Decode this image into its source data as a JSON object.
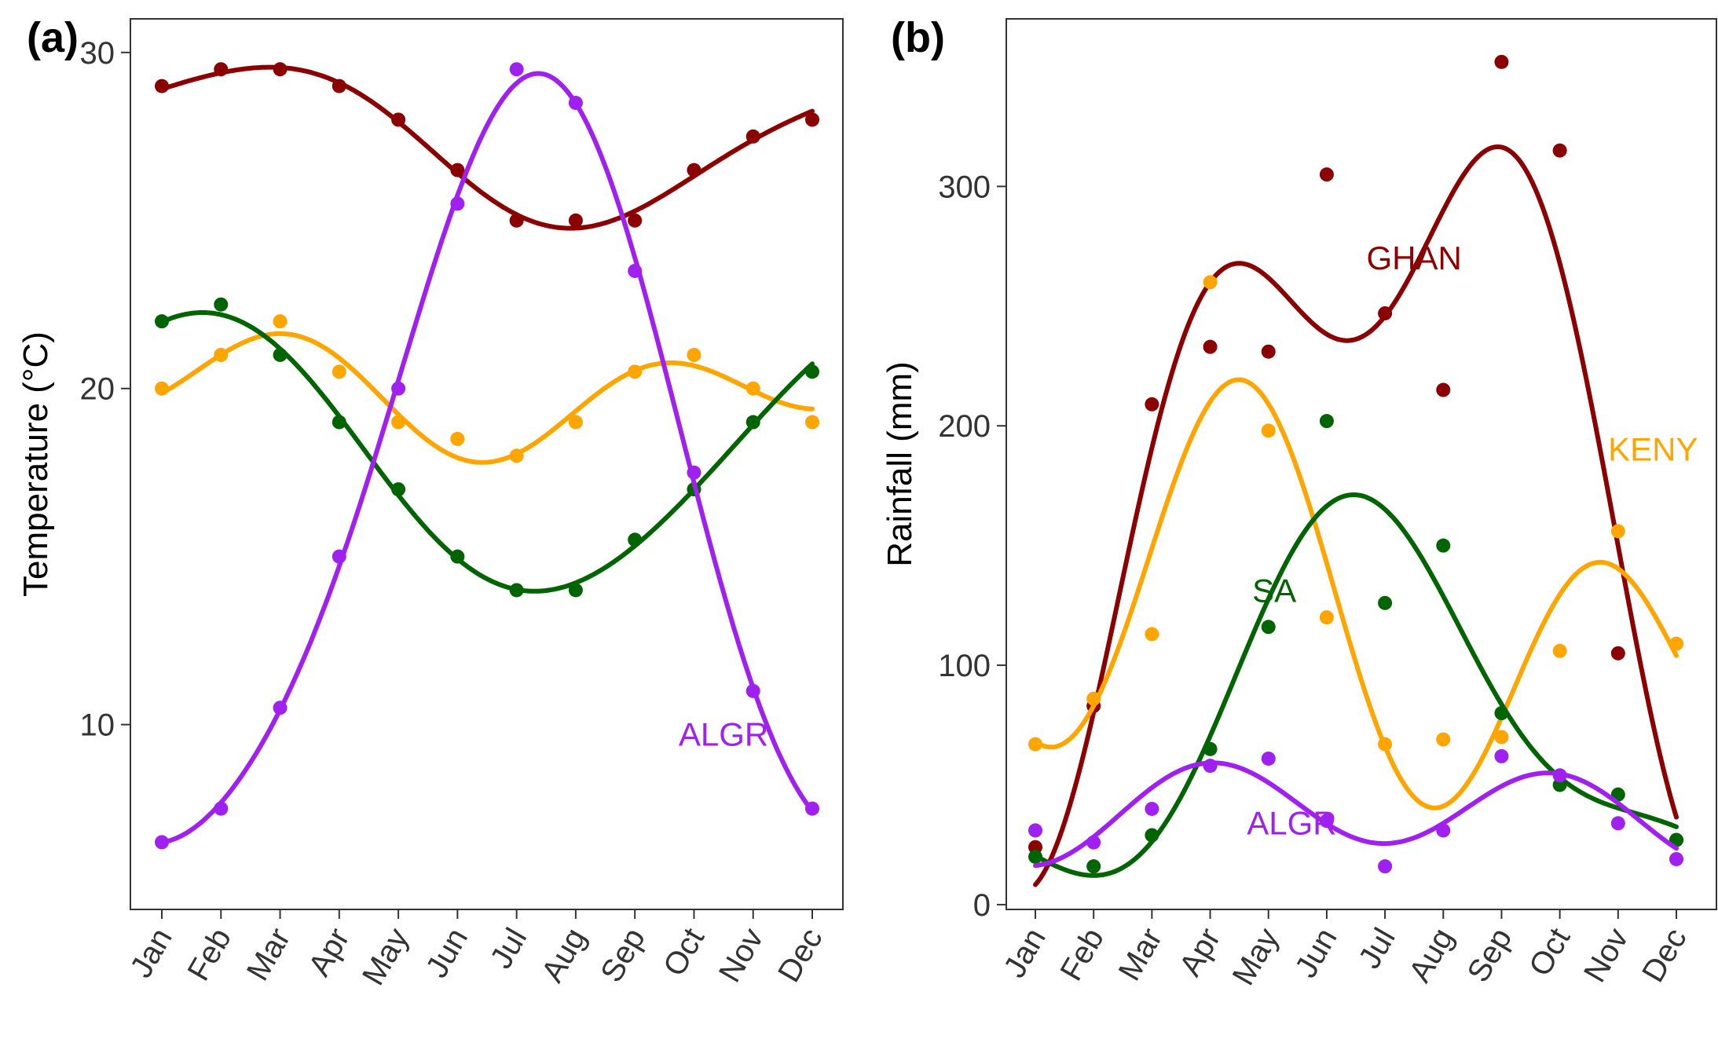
{
  "colors": {
    "GHAN": "#8B0000",
    "KENY": "#FFA500",
    "SA": "#006400",
    "ALGR": "#A020F0",
    "frame": "#333333"
  },
  "chart_data": [
    {
      "panel": "(a)",
      "type": "scatter",
      "ylabel": "Temperature (°C)",
      "xlabel": "",
      "categories": [
        "Jan",
        "Feb",
        "Mar",
        "Apr",
        "May",
        "Jun",
        "Jul",
        "Aug",
        "Sep",
        "Oct",
        "Nov",
        "Dec"
      ],
      "ylim": [
        4.5,
        31
      ],
      "yticks": [
        10,
        20,
        30
      ],
      "grid": false,
      "series": [
        {
          "key": "GHAN",
          "values": [
            29,
            29.5,
            29.5,
            29,
            28,
            26.5,
            25,
            25,
            25,
            26.5,
            27.5,
            28
          ]
        },
        {
          "key": "KENY",
          "values": [
            20,
            21,
            22,
            20.5,
            19,
            18.5,
            18,
            19,
            20.5,
            21,
            20,
            19
          ]
        },
        {
          "key": "SA",
          "values": [
            22,
            22.5,
            21,
            19,
            17,
            15,
            14,
            14,
            15.5,
            17,
            19,
            20.5
          ]
        },
        {
          "key": "ALGR",
          "name": "ALGR",
          "values": [
            6.5,
            7.5,
            10.5,
            15,
            20,
            25.5,
            29.5,
            28.5,
            23.5,
            17.5,
            11,
            7.5
          ]
        }
      ],
      "labels": [
        {
          "series": "ALGR",
          "text": "ALGR",
          "x": 9.5,
          "y": 9.7
        }
      ]
    },
    {
      "panel": "(b)",
      "type": "scatter",
      "ylabel": "Rainfall (mm)",
      "xlabel": "",
      "categories": [
        "Jan",
        "Feb",
        "Mar",
        "Apr",
        "May",
        "Jun",
        "Jul",
        "Aug",
        "Sep",
        "Oct",
        "Nov",
        "Dec"
      ],
      "ylim": [
        -2,
        370
      ],
      "yticks": [
        0,
        100,
        200,
        300
      ],
      "grid": false,
      "series": [
        {
          "key": "GHAN",
          "name": "GHAN",
          "values": [
            24,
            83,
            209,
            233,
            231,
            305,
            247,
            215,
            352,
            315,
            105,
            27
          ]
        },
        {
          "key": "KENY",
          "name": "KENY",
          "values": [
            67,
            86,
            113,
            260,
            198,
            120,
            67,
            69,
            70,
            106,
            156,
            109
          ]
        },
        {
          "key": "SA",
          "name": "SA",
          "values": [
            20,
            16,
            29,
            65,
            116,
            202,
            126,
            150,
            80,
            50,
            46,
            27
          ]
        },
        {
          "key": "ALGR",
          "name": "ALGR",
          "values": [
            31,
            26,
            40,
            58,
            61,
            35,
            16,
            31,
            62,
            54,
            34,
            19
          ]
        }
      ],
      "labels": [
        {
          "series": "GHAN",
          "text": "GHAN",
          "x": 6.5,
          "y": 270
        },
        {
          "series": "KENY",
          "text": "KENY",
          "x": 10.6,
          "y": 190
        },
        {
          "series": "SA",
          "text": "SA",
          "x": 4.1,
          "y": 131
        },
        {
          "series": "ALGR",
          "text": "ALGR",
          "x": 4.4,
          "y": 34
        }
      ]
    }
  ]
}
